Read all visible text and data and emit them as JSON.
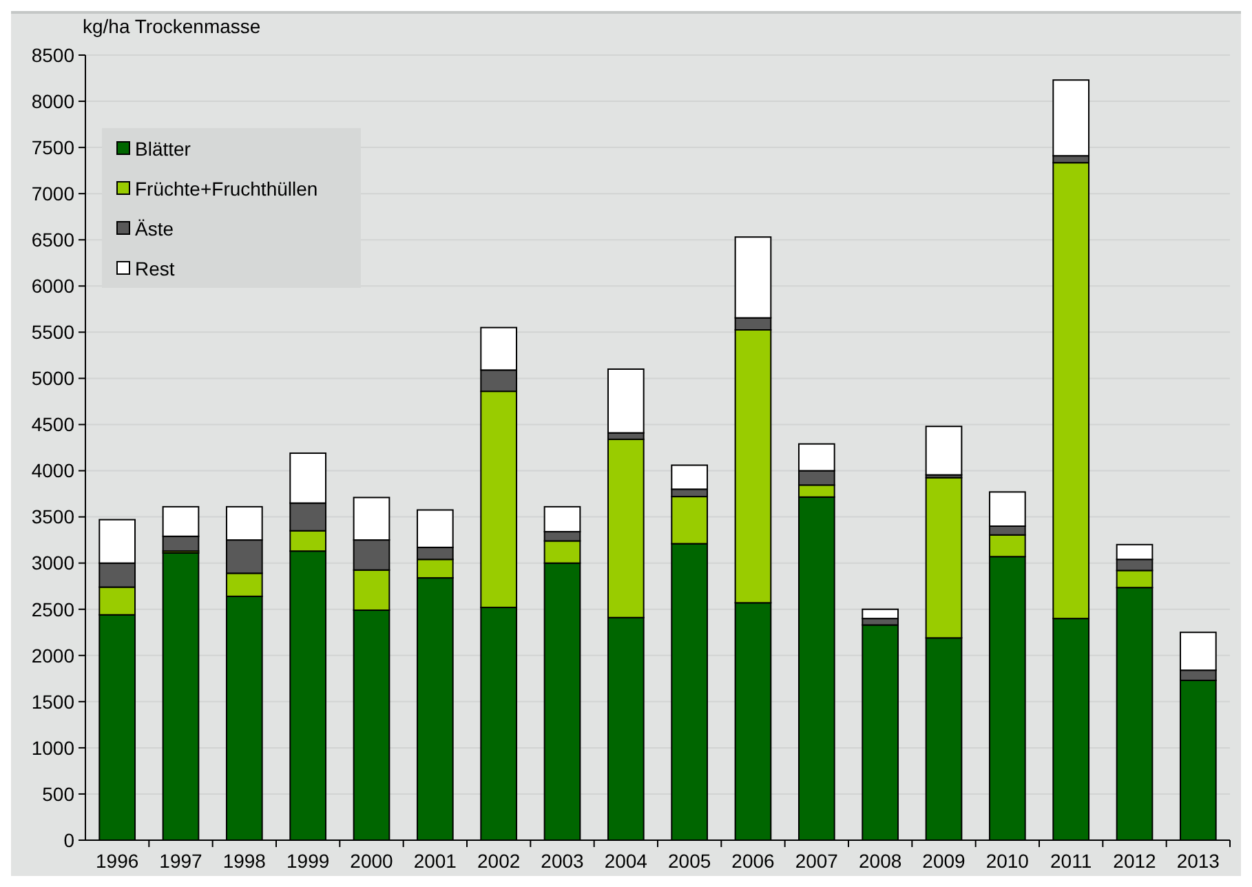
{
  "chart_data": {
    "type": "bar",
    "stacked": true,
    "ylabel": "kg/ha Trockenmasse",
    "categories": [
      "1996",
      "1997",
      "1998",
      "1999",
      "2000",
      "2001",
      "2002",
      "2003",
      "2004",
      "2005",
      "2006",
      "2007",
      "2008",
      "2009",
      "2010",
      "2011",
      "2012",
      "2013"
    ],
    "series": [
      {
        "name": "Blätter",
        "color": "#006600",
        "values": [
          2440,
          3110,
          2640,
          3130,
          2490,
          2840,
          2520,
          3000,
          2410,
          3210,
          2570,
          3715,
          2330,
          2190,
          3070,
          2400,
          2735,
          1730
        ]
      },
      {
        "name": "Früchte+Fruchthüllen",
        "color": "#99cc00",
        "values": [
          300,
          20,
          250,
          220,
          435,
          200,
          2340,
          240,
          1930,
          510,
          2955,
          130,
          0,
          1735,
          235,
          4935,
          185,
          0
        ]
      },
      {
        "name": "Äste",
        "color": "#595959",
        "values": [
          260,
          160,
          360,
          300,
          325,
          130,
          230,
          100,
          70,
          80,
          130,
          155,
          70,
          30,
          95,
          75,
          120,
          110
        ]
      },
      {
        "name": "Rest",
        "color": "#ffffff",
        "values": [
          470,
          320,
          360,
          540,
          460,
          405,
          460,
          270,
          690,
          260,
          875,
          290,
          100,
          525,
          370,
          820,
          160,
          410
        ]
      }
    ],
    "ylim": [
      0,
      8500
    ],
    "yticks": [
      0,
      500,
      1000,
      1500,
      2000,
      2500,
      3000,
      3500,
      4000,
      4500,
      5000,
      5500,
      6000,
      6500,
      7000,
      7500,
      8000,
      8500
    ],
    "grid": "y",
    "legend": "top left"
  }
}
